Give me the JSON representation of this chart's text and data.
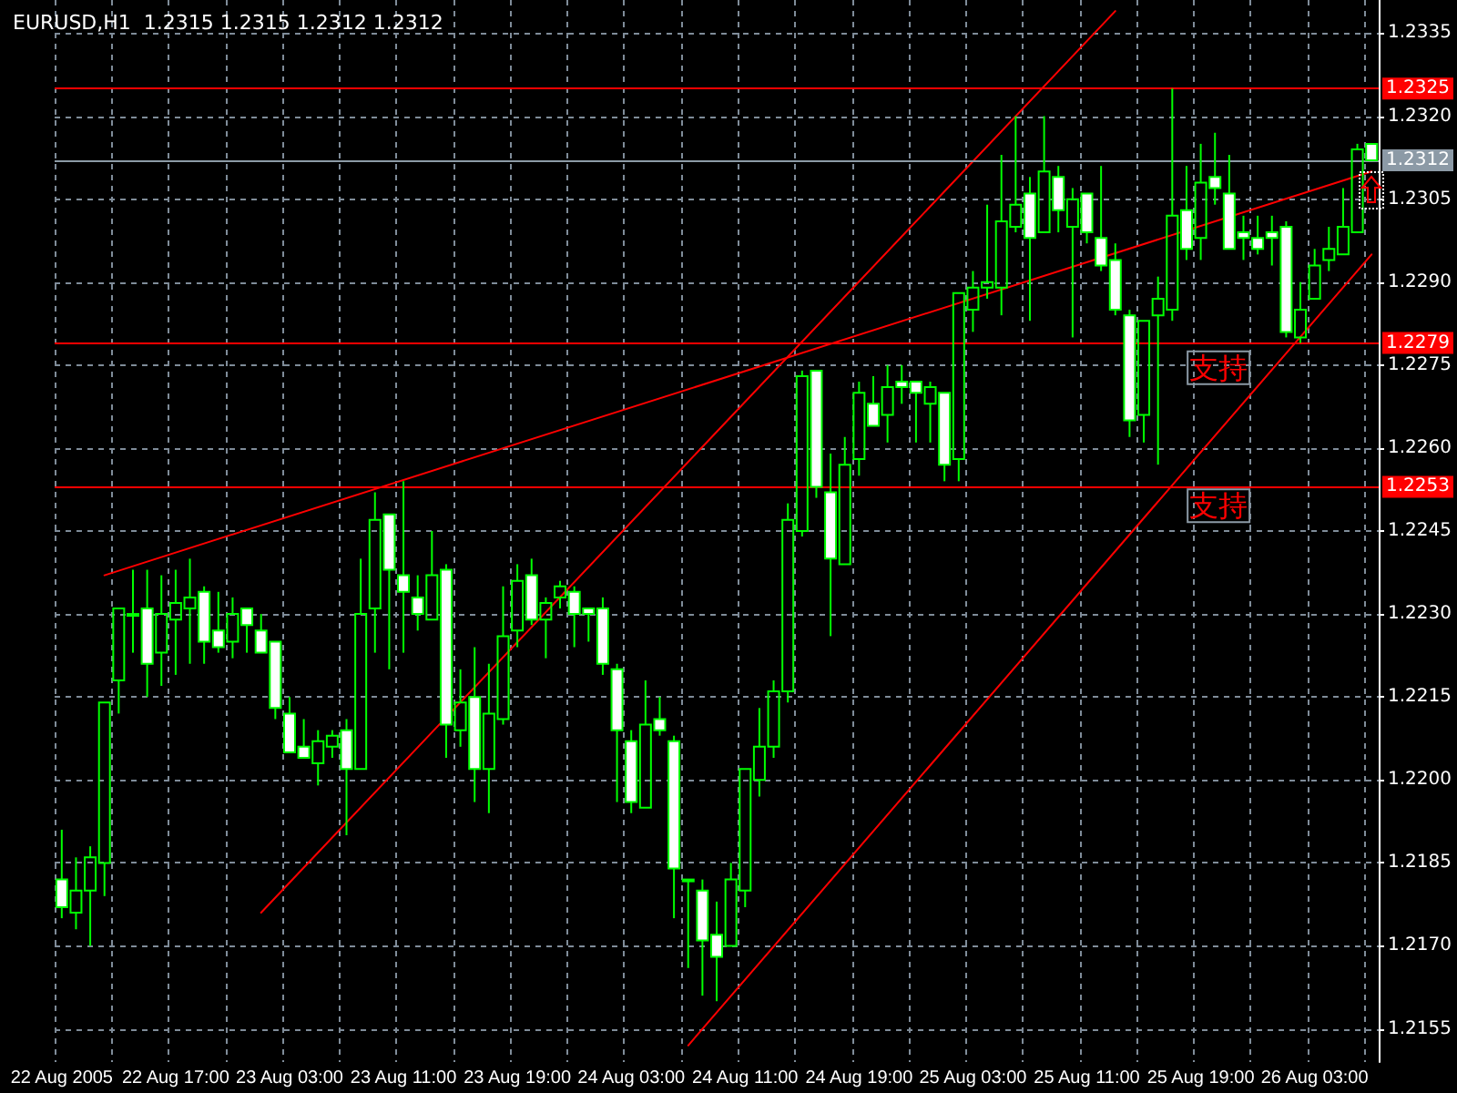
{
  "chart_data": {
    "type": "candlestick",
    "title": "EURUSD,H1  1.2315 1.2315 1.2312 1.2312",
    "color": "#00ff00",
    "categories": [
      "22 Aug 2005",
      null,
      null,
      null,
      null,
      null,
      null,
      null,
      "22 Aug 17:00",
      null,
      null,
      null,
      null,
      null,
      null,
      null,
      "23 Aug 03:00",
      null,
      null,
      null,
      null,
      null,
      null,
      null,
      "23 Aug 11:00",
      null,
      null,
      null,
      null,
      null,
      null,
      null,
      "23 Aug 19:00",
      null,
      null,
      null,
      null,
      null,
      null,
      null,
      "24 Aug 03:00",
      null,
      null,
      null,
      null,
      null,
      null,
      null,
      "24 Aug 11:00",
      null,
      null,
      null,
      null,
      null,
      null,
      null,
      "24 Aug 19:00",
      null,
      null,
      null,
      null,
      null,
      null,
      null,
      "25 Aug 03:00",
      null,
      null,
      null,
      null,
      null,
      null,
      null,
      "25 Aug 11:00",
      null,
      null,
      null,
      null,
      null,
      null,
      null,
      "25 Aug 19:00",
      null,
      null,
      null,
      null,
      null,
      null,
      null,
      "26 Aug 03:00",
      null,
      null,
      null,
      null
    ],
    "ohlc": [
      [
        1.2182,
        1.2191,
        1.2175,
        1.2177
      ],
      [
        1.2176,
        1.2186,
        1.2173,
        1.218
      ],
      [
        1.218,
        1.2188,
        1.217,
        1.2186
      ],
      [
        1.2185,
        1.2214,
        1.2179,
        1.2214
      ],
      [
        1.2218,
        1.2231,
        1.2212,
        1.2231
      ],
      [
        1.223,
        1.2238,
        1.2223,
        1.223
      ],
      [
        1.2231,
        1.2238,
        1.2215,
        1.2221
      ],
      [
        1.2223,
        1.2237,
        1.2217,
        1.223
      ],
      [
        1.2229,
        1.2238,
        1.2219,
        1.2232
      ],
      [
        1.2231,
        1.224,
        1.2221,
        1.2233
      ],
      [
        1.2234,
        1.2235,
        1.2221,
        1.2225
      ],
      [
        1.2227,
        1.2234,
        1.2223,
        1.2224
      ],
      [
        1.2225,
        1.2233,
        1.2222,
        1.223
      ],
      [
        1.2231,
        1.2231,
        1.2223,
        1.2228
      ],
      [
        1.2227,
        1.223,
        1.2223,
        1.2223
      ],
      [
        1.2225,
        1.2225,
        1.2211,
        1.2213
      ],
      [
        1.2212,
        1.2215,
        1.2205,
        1.2205
      ],
      [
        1.2206,
        1.2211,
        1.2204,
        1.2204
      ],
      [
        1.2203,
        1.2209,
        1.2199,
        1.2207
      ],
      [
        1.2206,
        1.2209,
        1.2204,
        1.2208
      ],
      [
        1.2209,
        1.2211,
        1.219,
        1.2202
      ],
      [
        1.2202,
        1.224,
        1.2202,
        1.223
      ],
      [
        1.2231,
        1.2252,
        1.2223,
        1.2247
      ],
      [
        1.2248,
        1.2248,
        1.222,
        1.2238
      ],
      [
        1.2237,
        1.2254,
        1.2223,
        1.2234
      ],
      [
        1.2233,
        1.2237,
        1.2227,
        1.223
      ],
      [
        1.2229,
        1.2245,
        1.2229,
        1.2237
      ],
      [
        1.2238,
        1.2239,
        1.2204,
        1.221
      ],
      [
        1.2209,
        1.222,
        1.2206,
        1.2214
      ],
      [
        1.2215,
        1.2224,
        1.2196,
        1.2202
      ],
      [
        1.2202,
        1.2221,
        1.2194,
        1.2212
      ],
      [
        1.2211,
        1.2235,
        1.221,
        1.2226
      ],
      [
        1.2227,
        1.2239,
        1.2224,
        1.2236
      ],
      [
        1.2237,
        1.224,
        1.2228,
        1.2229
      ],
      [
        1.2229,
        1.2233,
        1.2222,
        1.2232
      ],
      [
        1.2233,
        1.2236,
        1.2231,
        1.2235
      ],
      [
        1.2234,
        1.2235,
        1.2224,
        1.223
      ],
      [
        1.2231,
        1.2231,
        1.2225,
        1.223
      ],
      [
        1.2231,
        1.2233,
        1.2219,
        1.2221
      ],
      [
        1.222,
        1.2221,
        1.2196,
        1.2209
      ],
      [
        1.2207,
        1.2209,
        1.2194,
        1.2196
      ],
      [
        1.2195,
        1.2218,
        1.2195,
        1.221
      ],
      [
        1.2211,
        1.2215,
        1.2208,
        1.2209
      ],
      [
        1.2207,
        1.2208,
        1.2175,
        1.2184
      ],
      [
        1.2182,
        1.2182,
        1.2166,
        1.2182
      ],
      [
        1.218,
        1.2182,
        1.2161,
        1.2171
      ],
      [
        1.2172,
        1.2178,
        1.216,
        1.2168
      ],
      [
        1.217,
        1.2185,
        1.217,
        1.2182
      ],
      [
        1.218,
        1.2202,
        1.2177,
        1.2202
      ],
      [
        1.22,
        1.2213,
        1.2197,
        1.2206
      ],
      [
        1.2206,
        1.2218,
        1.2204,
        1.2216
      ],
      [
        1.2216,
        1.225,
        1.2214,
        1.2247
      ],
      [
        1.2245,
        1.2274,
        1.2244,
        1.2273
      ],
      [
        1.2274,
        1.2274,
        1.2251,
        1.2253
      ],
      [
        1.2252,
        1.2259,
        1.2226,
        1.224
      ],
      [
        1.2239,
        1.2262,
        1.2239,
        1.2257
      ],
      [
        1.2258,
        1.2272,
        1.2255,
        1.227
      ],
      [
        1.2268,
        1.2273,
        1.2264,
        1.2264
      ],
      [
        1.2266,
        1.2275,
        1.2261,
        1.2271
      ],
      [
        1.2272,
        1.2275,
        1.2268,
        1.2271
      ],
      [
        1.2272,
        1.2272,
        1.2261,
        1.227
      ],
      [
        1.2268,
        1.2272,
        1.2261,
        1.2271
      ],
      [
        1.227,
        1.227,
        1.2254,
        1.2257
      ],
      [
        1.2258,
        1.2288,
        1.2254,
        1.2288
      ],
      [
        1.2285,
        1.2292,
        1.2281,
        1.2289
      ],
      [
        1.2289,
        1.2304,
        1.2287,
        1.229
      ],
      [
        1.2289,
        1.2313,
        1.2284,
        1.2301
      ],
      [
        1.23,
        1.232,
        1.2299,
        1.2304
      ],
      [
        1.2306,
        1.2309,
        1.2283,
        1.2298
      ],
      [
        1.2299,
        1.232,
        1.2299,
        1.231
      ],
      [
        1.2309,
        1.2311,
        1.2299,
        1.2303
      ],
      [
        1.23,
        1.2307,
        1.228,
        1.2305
      ],
      [
        1.2306,
        1.2306,
        1.2297,
        1.2299
      ],
      [
        1.2298,
        1.2311,
        1.2292,
        1.2293
      ],
      [
        1.2294,
        1.2297,
        1.2284,
        1.2285
      ],
      [
        1.2284,
        1.2285,
        1.2262,
        1.2265
      ],
      [
        1.2266,
        1.2283,
        1.2261,
        1.2283
      ],
      [
        1.2284,
        1.2291,
        1.2257,
        1.2287
      ],
      [
        1.2285,
        1.2325,
        1.2283,
        1.2302
      ],
      [
        1.2303,
        1.2311,
        1.2294,
        1.2296
      ],
      [
        1.2298,
        1.2315,
        1.2294,
        1.2308
      ],
      [
        1.2309,
        1.2317,
        1.2304,
        1.2307
      ],
      [
        1.2306,
        1.2313,
        1.2296,
        1.2296
      ],
      [
        1.2299,
        1.2302,
        1.2294,
        1.2298
      ],
      [
        1.2298,
        1.2302,
        1.2295,
        1.2296
      ],
      [
        1.2299,
        1.2302,
        1.2293,
        1.2298
      ],
      [
        1.23,
        1.2301,
        1.228,
        1.2281
      ],
      [
        1.228,
        1.229,
        1.2279,
        1.2285
      ],
      [
        1.2287,
        1.2296,
        1.2287,
        1.2293
      ],
      [
        1.2294,
        1.23,
        1.2292,
        1.2296
      ],
      [
        1.2295,
        1.2307,
        1.2295,
        1.23
      ],
      [
        1.2299,
        1.2315,
        1.2299,
        1.2314
      ],
      [
        1.2315,
        1.2315,
        1.2312,
        1.2312
      ]
    ],
    "series": [
      {
        "type": "line",
        "color": "#ff0000",
        "values": [
          null,
          null,
          null,
          1.2237,
          null,
          null,
          null,
          null,
          null,
          null,
          null,
          null,
          null,
          null,
          null,
          null,
          null,
          null,
          null,
          null,
          null,
          null,
          null,
          null,
          null,
          null,
          null,
          null,
          null,
          null,
          null,
          null,
          null,
          null,
          null,
          null,
          null,
          null,
          null,
          null,
          null,
          null,
          null,
          null,
          null,
          null,
          null,
          null,
          null,
          null,
          null,
          null,
          null,
          null,
          null,
          null,
          null,
          null,
          null,
          null,
          null,
          null,
          null,
          null,
          null,
          null,
          null,
          null,
          null,
          null,
          null,
          null,
          null,
          null,
          null,
          null,
          null,
          null,
          null,
          null,
          null,
          null,
          null,
          null,
          null,
          null,
          null,
          null,
          null,
          null,
          null,
          null,
          1.231
        ]
      },
      {
        "type": "line",
        "color": "#ff0000",
        "values": [
          null,
          null,
          null,
          null,
          null,
          null,
          null,
          null,
          null,
          null,
          null,
          null,
          null,
          null,
          1.2176,
          null,
          null,
          null,
          null,
          null,
          null,
          null,
          null,
          null,
          null,
          null,
          null,
          null,
          null,
          null,
          null,
          null,
          null,
          null,
          null,
          null,
          null,
          null,
          null,
          null,
          null,
          null,
          null,
          null,
          null,
          null,
          null,
          null,
          null,
          null,
          null,
          null,
          null,
          null,
          null,
          null,
          null,
          null,
          null,
          null,
          null,
          null,
          null,
          null,
          null,
          null,
          null,
          null,
          null,
          null,
          null,
          null,
          null,
          null,
          1.2339,
          null,
          null,
          null,
          null,
          null,
          null,
          null,
          null,
          null,
          null,
          null,
          null,
          null,
          null,
          null,
          null,
          null,
          null
        ]
      },
      {
        "type": "line",
        "color": "#ff0000",
        "values": [
          null,
          null,
          null,
          null,
          null,
          null,
          null,
          null,
          null,
          null,
          null,
          null,
          null,
          null,
          null,
          null,
          null,
          null,
          null,
          null,
          null,
          null,
          null,
          null,
          null,
          null,
          null,
          null,
          null,
          null,
          null,
          null,
          null,
          null,
          null,
          null,
          null,
          null,
          null,
          null,
          null,
          null,
          null,
          null,
          1.2152,
          null,
          null,
          null,
          null,
          null,
          null,
          null,
          null,
          null,
          null,
          null,
          null,
          null,
          null,
          null,
          null,
          null,
          null,
          null,
          null,
          null,
          null,
          null,
          null,
          null,
          null,
          null,
          null,
          null,
          null,
          null,
          null,
          null,
          null,
          null,
          null,
          null,
          null,
          null,
          null,
          null,
          null,
          null,
          null,
          null,
          null,
          null,
          1.2295
        ]
      }
    ],
    "ylim": [
      1.2149,
      1.2341
    ],
    "yticks": [
      1.2155,
      {
        "value": 1.217,
        "label": "1.2170"
      },
      1.2185,
      {
        "value": 1.22,
        "label": "1.2200"
      },
      1.2215,
      {
        "value": 1.223,
        "label": "1.2230"
      },
      1.2245,
      {
        "value": 1.226,
        "label": "1.2260"
      },
      1.2275,
      {
        "value": 1.229,
        "label": "1.2290"
      },
      1.2305,
      {
        "value": 1.232,
        "label": "1.2320"
      },
      1.2335
    ],
    "grid": true,
    "marker": "none",
    "line_style": "solid",
    "ref_lines": [
      {
        "axis": "y",
        "value": 1.2325,
        "label": "1.2325",
        "color": "#ff0000"
      },
      {
        "axis": "y",
        "value": 1.2312,
        "label": "1.2312",
        "color": "#8c9aa6"
      },
      {
        "axis": "y",
        "value": 1.2279,
        "label": "1.2279",
        "color": "#ff0000"
      },
      {
        "axis": "y",
        "value": 1.2253,
        "label": "1.2253",
        "color": "#ff0000"
      }
    ],
    "annotations": [
      "支持",
      "支持"
    ]
  }
}
